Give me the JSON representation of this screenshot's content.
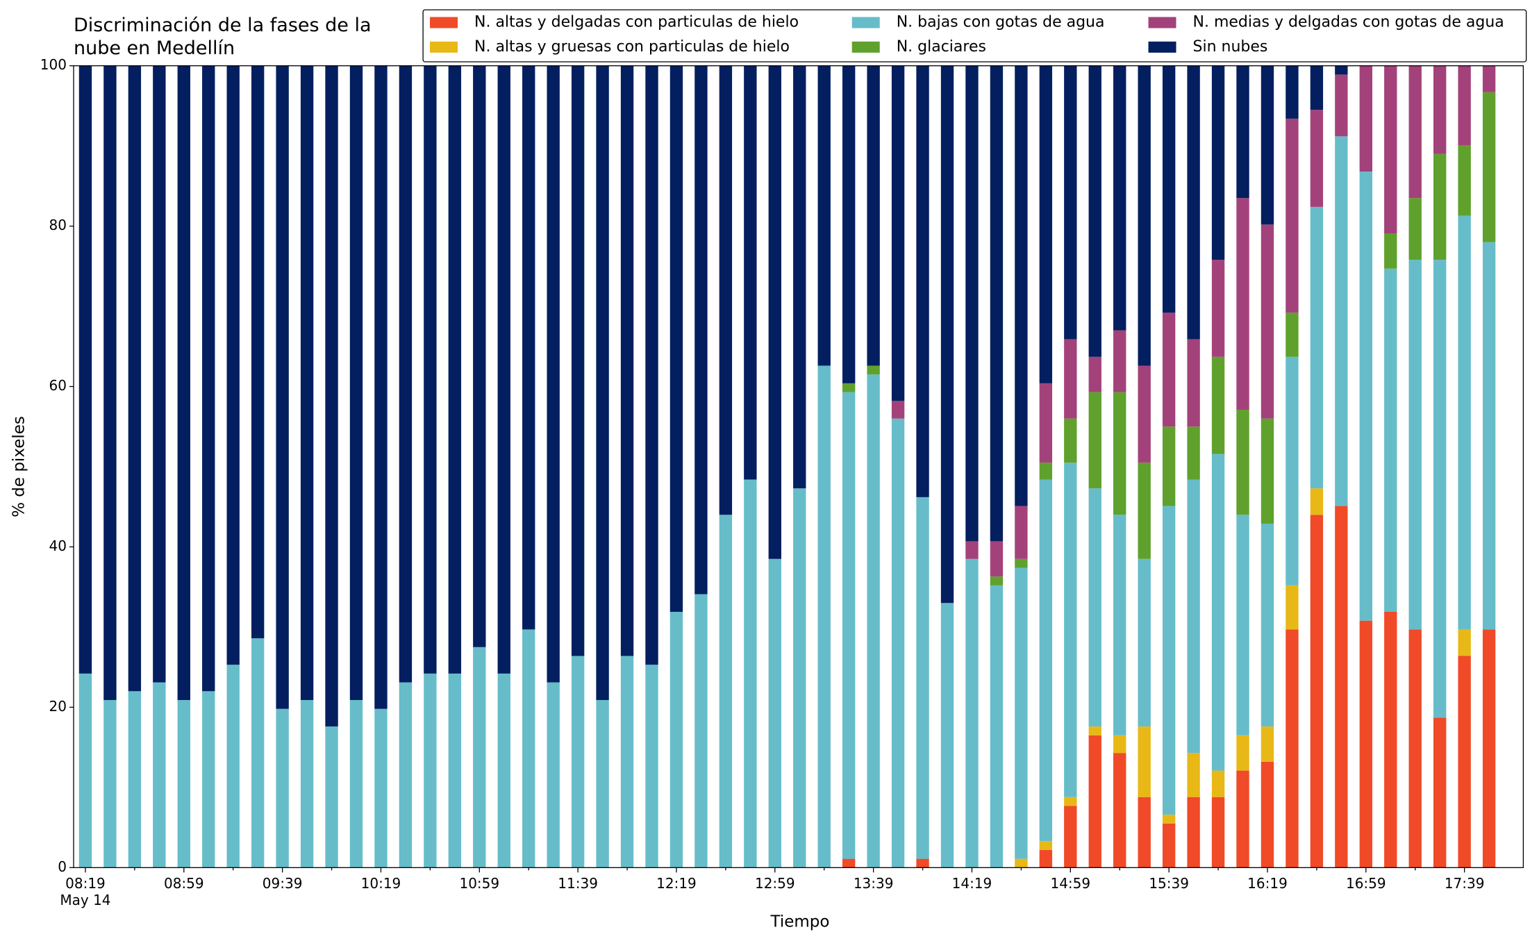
{
  "chart_data": {
    "type": "stacked_bar",
    "title": "Discriminación de la fases de la nube en Medellín",
    "xlabel": "Tiempo",
    "ylabel": "% de pixeles",
    "date": "May 14",
    "categories": [
      "08:19",
      null,
      null,
      null,
      "08:59",
      null,
      null,
      null,
      "09:39",
      null,
      null,
      null,
      "10:19",
      null,
      null,
      null,
      "10:59",
      null,
      null,
      null,
      "11:39",
      null,
      null,
      null,
      "12:19",
      null,
      null,
      null,
      "12:59",
      null,
      null,
      null,
      "13:39",
      null,
      null,
      null,
      "14:19",
      null,
      null,
      null,
      "14:59",
      null,
      null,
      null,
      "15:39",
      null,
      null,
      null,
      "16:19",
      null,
      null,
      null,
      "16:59",
      null,
      null,
      null,
      "17:39",
      null
    ],
    "ylim": [
      0,
      100
    ],
    "yticks": [
      0,
      20,
      40,
      60,
      80,
      100
    ],
    "legend": "top",
    "series": [
      {
        "name": "N. altas y delgadas con particulas de hielo",
        "color": "#f04a28",
        "values": [
          0,
          0,
          0,
          0,
          0,
          0,
          0,
          0,
          0,
          0,
          0,
          0,
          0,
          0,
          0,
          0,
          0,
          0,
          0,
          0,
          0,
          0,
          0,
          0,
          0,
          0,
          0,
          0,
          0,
          0,
          0,
          1.1,
          0,
          0,
          1.1,
          0,
          0,
          0,
          0,
          2.2,
          7.7,
          16.5,
          14.3,
          8.8,
          5.5,
          8.8,
          8.8,
          12.1,
          13.2,
          29.7,
          44,
          45.1,
          30.8,
          31.9,
          29.7,
          18.7,
          26.4,
          29.7
        ]
      },
      {
        "name": "N. altas y gruesas con particulas de hielo",
        "color": "#e8b817",
        "values": [
          0,
          0,
          0,
          0,
          0,
          0,
          0,
          0,
          0,
          0,
          0,
          0,
          0,
          0,
          0,
          0,
          0,
          0,
          0,
          0,
          0,
          0,
          0,
          0,
          0,
          0,
          0,
          0,
          0,
          0,
          0,
          0,
          0,
          0,
          0,
          0,
          0,
          0,
          1.1,
          1.1,
          1.1,
          1.1,
          2.2,
          8.8,
          1.1,
          5.5,
          3.3,
          4.4,
          4.4,
          5.5,
          3.3,
          0,
          0,
          0,
          0,
          0,
          3.3,
          0
        ]
      },
      {
        "name": "N. bajas con gotas de agua",
        "color": "#66bdc9",
        "values": [
          24.2,
          20.9,
          22,
          23.1,
          20.9,
          22,
          25.3,
          28.6,
          19.8,
          20.9,
          17.6,
          20.9,
          19.8,
          23.1,
          24.2,
          24.2,
          27.5,
          24.2,
          29.7,
          23.1,
          26.4,
          20.9,
          26.4,
          25.3,
          31.9,
          34.1,
          44,
          48.4,
          38.5,
          47.3,
          62.6,
          58.2,
          61.5,
          56,
          45.1,
          33,
          38.5,
          35.2,
          36.3,
          45.1,
          41.7,
          29.7,
          27.5,
          20.9,
          38.5,
          34.1,
          39.5,
          27.5,
          25.3,
          28.5,
          35.1,
          46.1,
          56,
          42.8,
          46.1,
          57.1,
          51.6,
          48.3
        ]
      },
      {
        "name": "N. glaciares",
        "color": "#5fa12c",
        "values": [
          0,
          0,
          0,
          0,
          0,
          0,
          0,
          0,
          0,
          0,
          0,
          0,
          0,
          0,
          0,
          0,
          0,
          0,
          0,
          0,
          0,
          0,
          0,
          0,
          0,
          0,
          0,
          0,
          0,
          0,
          0,
          1.1,
          1.1,
          0,
          0,
          0,
          0,
          1.1,
          1.1,
          2.1,
          5.5,
          12,
          15.3,
          12,
          9.9,
          6.6,
          12.1,
          13.1,
          13.1,
          5.5,
          0,
          0,
          0,
          4.4,
          7.7,
          13.2,
          8.8,
          18.7
        ]
      },
      {
        "name": "N. medias y delgadas con gotas de agua",
        "color": "#a3427a",
        "values": [
          0,
          0,
          0,
          0,
          0,
          0,
          0,
          0,
          0,
          0,
          0,
          0,
          0,
          0,
          0,
          0,
          0,
          0,
          0,
          0,
          0,
          0,
          0,
          0,
          0,
          0,
          0,
          0,
          0,
          0,
          0,
          0,
          0,
          2.2,
          0,
          0,
          2.2,
          4.4,
          6.6,
          9.9,
          9.9,
          4.4,
          7.7,
          12.1,
          14.2,
          10.9,
          12.1,
          26.4,
          24.2,
          24.2,
          12.1,
          7.7,
          13.2,
          20.9,
          16.5,
          11,
          9.9,
          3.3
        ]
      },
      {
        "name": "Sin nubes",
        "color": "#031f60",
        "values": [
          75.8,
          79.1,
          78,
          76.9,
          79.1,
          78,
          74.7,
          71.4,
          80.2,
          79.1,
          82.4,
          79.1,
          80.2,
          76.9,
          75.8,
          75.8,
          72.5,
          75.8,
          70.3,
          76.9,
          73.6,
          79.1,
          73.6,
          74.7,
          68.1,
          65.9,
          56,
          51.6,
          61.5,
          52.7,
          37.4,
          39.6,
          37.4,
          41.8,
          53.8,
          67,
          59.3,
          59.3,
          54.9,
          39.6,
          34.1,
          36.3,
          33,
          37.4,
          30.8,
          34.1,
          24.2,
          16.5,
          19.8,
          6.6,
          5.5,
          1.1,
          0,
          0,
          0,
          0,
          0,
          0
        ]
      }
    ]
  }
}
